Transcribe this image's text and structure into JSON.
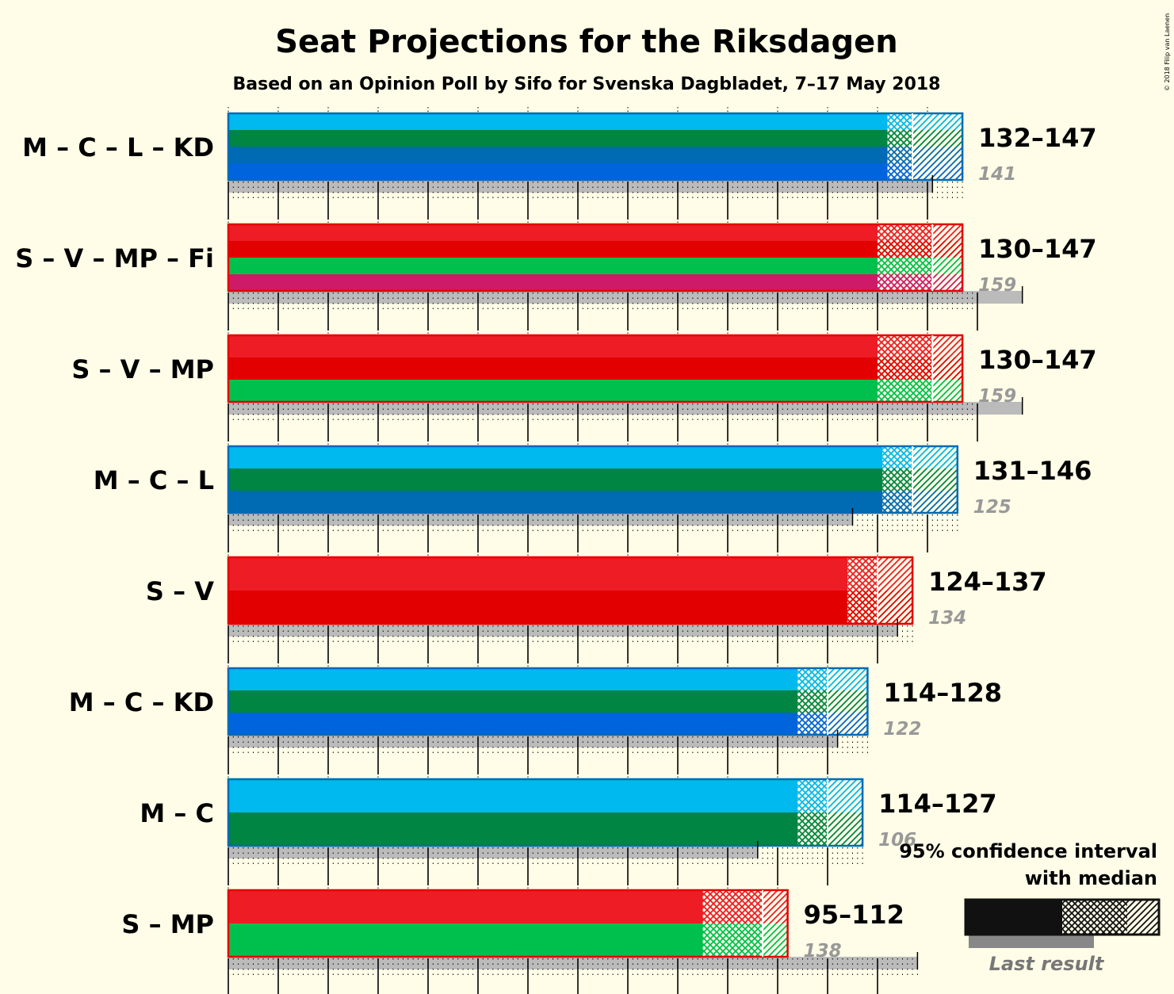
{
  "title": "Seat Projections for the Riksdagen",
  "subtitle": "Based on an Opinion Poll by Sifo for Svenska Dagbladet, 7–17 May 2018",
  "copyright": "© 2018 Filip van Laenen",
  "legend": {
    "line1": "95% confidence interval",
    "line2": "with median",
    "last_result": "Last result"
  },
  "colors": {
    "background": "#FFFDE7",
    "M": "#00B9EE",
    "C": "#008542",
    "L": "#006AB3",
    "KD": "#0064DC",
    "S": "#EE1C25",
    "S_dark": "#E30000",
    "V": "#E30000",
    "MP": "#00C04D",
    "Fi": "#CD1B68",
    "last_bar": "#BBBBBB",
    "last_text": "#999999"
  },
  "chart_data": {
    "type": "bar",
    "orientation": "horizontal",
    "xlim": [
      0,
      160
    ],
    "grid": true,
    "rows": [
      {
        "label": "M – C – L – KD",
        "parties": [
          "M",
          "C",
          "L",
          "KD"
        ],
        "low": 132,
        "median": 137,
        "high": 147,
        "range_label": "132–147",
        "last": 141,
        "last_label": "141"
      },
      {
        "label": "S – V – MP – Fi",
        "parties": [
          "S",
          "V",
          "MP",
          "Fi"
        ],
        "low": 130,
        "median": 141,
        "high": 147,
        "range_label": "130–147",
        "last": 159,
        "last_label": "159"
      },
      {
        "label": "S – V – MP",
        "parties": [
          "S",
          "V",
          "MP"
        ],
        "low": 130,
        "median": 141,
        "high": 147,
        "range_label": "130–147",
        "last": 159,
        "last_label": "159"
      },
      {
        "label": "M – C – L",
        "parties": [
          "M",
          "C",
          "L"
        ],
        "low": 131,
        "median": 137,
        "high": 146,
        "range_label": "131–146",
        "last": 125,
        "last_label": "125"
      },
      {
        "label": "S – V",
        "parties": [
          "S",
          "V"
        ],
        "low": 124,
        "median": 130,
        "high": 137,
        "range_label": "124–137",
        "last": 134,
        "last_label": "134"
      },
      {
        "label": "M – C – KD",
        "parties": [
          "M",
          "C",
          "KD"
        ],
        "low": 114,
        "median": 120,
        "high": 128,
        "range_label": "114–128",
        "last": 122,
        "last_label": "122"
      },
      {
        "label": "M – C",
        "parties": [
          "M",
          "C"
        ],
        "low": 114,
        "median": 120,
        "high": 127,
        "range_label": "114–127",
        "last": 106,
        "last_label": "106"
      },
      {
        "label": "S – MP",
        "parties": [
          "S",
          "MP"
        ],
        "low": 95,
        "median": 107,
        "high": 112,
        "range_label": "95–112",
        "last": 138,
        "last_label": "138"
      }
    ]
  }
}
